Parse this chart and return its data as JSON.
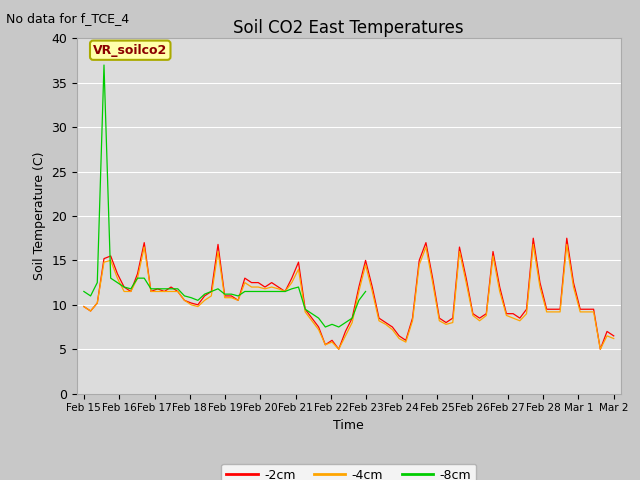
{
  "title": "Soil CO2 East Temperatures",
  "no_data_text": "No data for f_TCE_4",
  "vr_label": "VR_soilco2",
  "xlabel": "Time",
  "ylabel": "Soil Temperature (C)",
  "ylim": [
    0,
    40
  ],
  "legend": [
    "-2cm",
    "-4cm",
    "-8cm"
  ],
  "line_colors": [
    "#ff0000",
    "#ffa500",
    "#00cc00"
  ],
  "bg_color": "#dcdcdc",
  "fig_bg_color": "#c8c8c8",
  "days": [
    "Feb 15",
    "Feb 16",
    "Feb 17",
    "Feb 18",
    "Feb 19",
    "Feb 20",
    "Feb 21",
    "Feb 22",
    "Feb 23",
    "Feb 24",
    "Feb 25",
    "Feb 26",
    "Feb 27",
    "Feb 28",
    "Mar 1",
    "Mar 2"
  ],
  "red_data": [
    9.8,
    9.3,
    10.2,
    15.2,
    15.5,
    13.5,
    12.0,
    11.5,
    13.5,
    17.0,
    11.5,
    11.8,
    11.5,
    12.0,
    11.5,
    10.5,
    10.2,
    10.0,
    11.0,
    11.5,
    16.8,
    11.0,
    11.0,
    10.5,
    13.0,
    12.5,
    12.5,
    12.0,
    12.5,
    12.0,
    11.5,
    13.0,
    14.8,
    9.5,
    8.5,
    7.5,
    5.5,
    6.0,
    5.0,
    7.0,
    8.5,
    12.0,
    15.0,
    12.0,
    8.5,
    8.0,
    7.5,
    6.5,
    6.0,
    8.5,
    15.0,
    17.0,
    13.0,
    8.5,
    8.0,
    8.5,
    16.5,
    13.0,
    9.0,
    8.5,
    9.0,
    16.0,
    12.0,
    9.0,
    9.0,
    8.5,
    9.5,
    17.5,
    12.5,
    9.5,
    9.5,
    9.5,
    17.5,
    12.5,
    9.5,
    9.5,
    9.5,
    5.0,
    7.0,
    6.5
  ],
  "orange_data": [
    9.8,
    9.3,
    10.2,
    14.8,
    15.0,
    13.0,
    11.5,
    11.5,
    13.0,
    16.5,
    11.5,
    11.5,
    11.5,
    11.5,
    11.5,
    10.5,
    10.0,
    9.8,
    10.5,
    11.0,
    16.0,
    10.8,
    10.8,
    10.5,
    12.5,
    12.0,
    12.0,
    11.8,
    12.0,
    11.8,
    11.5,
    12.5,
    14.0,
    9.2,
    8.2,
    7.2,
    5.5,
    5.8,
    5.0,
    6.5,
    8.0,
    11.5,
    14.5,
    11.5,
    8.2,
    7.8,
    7.2,
    6.2,
    5.8,
    8.2,
    14.5,
    16.5,
    12.5,
    8.2,
    7.8,
    8.0,
    16.0,
    12.5,
    8.8,
    8.2,
    8.8,
    15.5,
    11.5,
    8.8,
    8.5,
    8.2,
    9.0,
    16.8,
    12.0,
    9.2,
    9.2,
    9.2,
    16.8,
    12.0,
    9.2,
    9.2,
    9.2,
    5.0,
    6.5,
    6.2
  ],
  "green_data": [
    11.5,
    11.0,
    12.5,
    37.0,
    13.0,
    12.5,
    12.0,
    11.8,
    13.0,
    13.0,
    11.8,
    11.8,
    11.8,
    11.8,
    11.8,
    11.0,
    10.8,
    10.5,
    11.2,
    11.5,
    11.8,
    11.2,
    11.2,
    11.0,
    11.5,
    11.5,
    11.5,
    11.5,
    11.5,
    11.5,
    11.5,
    11.8,
    12.0,
    9.5,
    9.0,
    8.5,
    7.5,
    7.8,
    7.5,
    8.0,
    8.5,
    10.5,
    11.5,
    null,
    null,
    null,
    null,
    null,
    null,
    null,
    null,
    null,
    null,
    null,
    null,
    null,
    null,
    null,
    null,
    null,
    null,
    null,
    null,
    null,
    null,
    null,
    null,
    null,
    null,
    null,
    null,
    null,
    null,
    null,
    null,
    null,
    null,
    null,
    null,
    null
  ]
}
